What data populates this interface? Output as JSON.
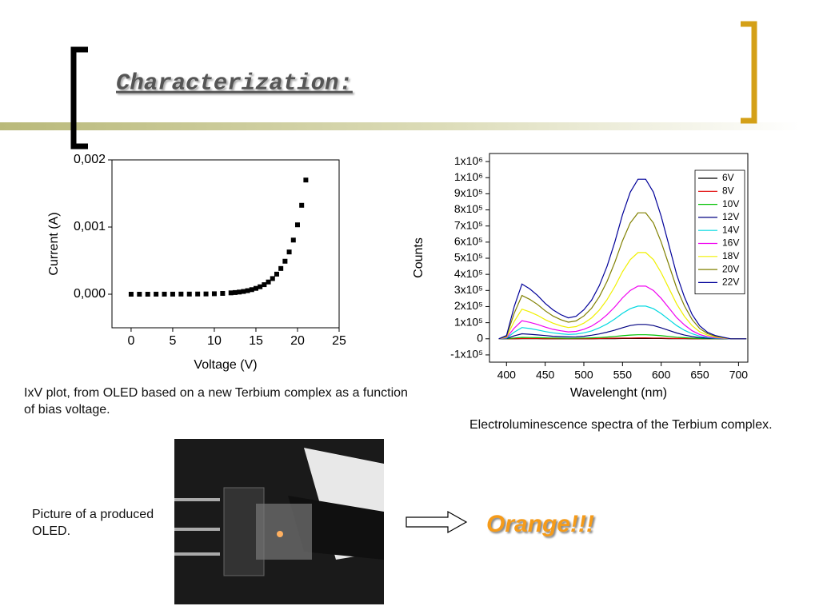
{
  "title": "Characterization:",
  "chart_data": [
    {
      "type": "scatter",
      "xlabel": "Voltage (V)",
      "ylabel": "Current (A)",
      "color": "#000000",
      "x": [
        0,
        1,
        2,
        3,
        4,
        5,
        6,
        7,
        8,
        9,
        10,
        11,
        12,
        12.5,
        13,
        13.5,
        14,
        14.5,
        15,
        15.5,
        16,
        16.5,
        17,
        17.5,
        18,
        18.5,
        19,
        19.5,
        20,
        20.5,
        21
      ],
      "values": [
        0,
        0,
        0,
        1e-06,
        1e-06,
        1e-06,
        2e-06,
        2e-06,
        3e-06,
        4e-06,
        7e-06,
        1.2e-05,
        2e-05,
        2.5e-05,
        3.2e-05,
        4.1e-05,
        5.3e-05,
        6.8e-05,
        8.7e-05,
        0.000111,
        0.000142,
        0.000182,
        0.000233,
        0.000299,
        0.000383,
        0.000491,
        0.000629,
        0.000806,
        0.001033,
        0.001324,
        0.0017
      ],
      "xlim": [
        -2.3,
        25
      ],
      "xticks": [
        0,
        5,
        10,
        15,
        20,
        25
      ],
      "ylim": [
        -0.0005,
        0.002
      ],
      "yticks": [
        {
          "value": 0,
          "label": "0,000"
        },
        {
          "value": 0.001,
          "label": "0,001"
        },
        {
          "value": 0.002,
          "label": "0,002"
        }
      ]
    },
    {
      "type": "line",
      "xlabel": "Wavelenght (nm)",
      "ylabel": "Counts",
      "legend": "upper right",
      "x": [
        390,
        400,
        410,
        420,
        430,
        440,
        450,
        460,
        470,
        480,
        490,
        500,
        510,
        520,
        530,
        540,
        550,
        560,
        570,
        580,
        590,
        600,
        610,
        620,
        630,
        640,
        650,
        660,
        670,
        680,
        690,
        700,
        710
      ],
      "series": [
        {
          "name": "6V",
          "color": "#000000",
          "values": [
            0,
            0,
            0,
            1000,
            1000,
            1000,
            0,
            0,
            0,
            0,
            0,
            0,
            0,
            1000,
            1000,
            1000,
            2000,
            2000,
            2000,
            2000,
            2000,
            2000,
            1000,
            1000,
            1000,
            0,
            0,
            0,
            0,
            0,
            0,
            0,
            0
          ]
        },
        {
          "name": "8V",
          "color": "#e00000",
          "values": [
            0,
            0,
            1000,
            2000,
            2000,
            2000,
            1000,
            1000,
            1000,
            1000,
            1000,
            1000,
            1000,
            2000,
            3000,
            4000,
            5000,
            5000,
            6000,
            6000,
            5000,
            5000,
            3000,
            2000,
            2000,
            1000,
            0,
            0,
            0,
            0,
            0,
            0,
            0
          ]
        },
        {
          "name": "10V",
          "color": "#00c000",
          "values": [
            0,
            1000,
            5000,
            9000,
            8000,
            7000,
            6000,
            5000,
            4000,
            3000,
            4000,
            5000,
            6000,
            8000,
            11000,
            15000,
            19000,
            23000,
            25000,
            25000,
            23000,
            19000,
            15000,
            10000,
            7000,
            4000,
            2000,
            1000,
            1000,
            0,
            0,
            0,
            0
          ]
        },
        {
          "name": "12V",
          "color": "#000080",
          "values": [
            0,
            2000,
            18000,
            31000,
            28000,
            24000,
            20000,
            16000,
            14000,
            12000,
            13000,
            16000,
            22000,
            30000,
            41000,
            54000,
            69000,
            82000,
            89000,
            89000,
            82000,
            68000,
            52000,
            36000,
            23000,
            14000,
            7000,
            4000,
            2000,
            1000,
            0,
            0,
            0
          ]
        },
        {
          "name": "14V",
          "color": "#00d8e0",
          "values": [
            0,
            4000,
            41000,
            70000,
            64000,
            55000,
            45000,
            37000,
            31000,
            27000,
            29000,
            37000,
            49000,
            68000,
            92000,
            123000,
            158000,
            187000,
            203000,
            203000,
            187000,
            156000,
            119000,
            82000,
            53000,
            31000,
            16000,
            8000,
            4000,
            2000,
            0,
            0,
            0
          ]
        },
        {
          "name": "16V",
          "color": "#f000f0",
          "values": [
            0,
            7000,
            66000,
            112000,
            102000,
            89000,
            73000,
            59000,
            50000,
            43000,
            46000,
            59000,
            79000,
            109000,
            149000,
            198000,
            254000,
            300000,
            327000,
            327000,
            300000,
            251000,
            191000,
            132000,
            86000,
            50000,
            26000,
            13000,
            7000,
            3000,
            0,
            0,
            0
          ]
        },
        {
          "name": "18V",
          "color": "#f0f000",
          "values": [
            0,
            11000,
            108000,
            184000,
            167000,
            146000,
            119000,
            97000,
            81000,
            70000,
            76000,
            97000,
            130000,
            178000,
            243000,
            324000,
            416000,
            491000,
            535000,
            535000,
            491000,
            410000,
            313000,
            216000,
            140000,
            81000,
            43000,
            22000,
            11000,
            5000,
            0,
            0,
            0
          ]
        },
        {
          "name": "20V",
          "color": "#808000",
          "values": [
            0,
            16000,
            158000,
            269000,
            245000,
            213000,
            174000,
            142000,
            119000,
            103000,
            111000,
            142000,
            190000,
            261000,
            356000,
            474000,
            608000,
            719000,
            782000,
            782000,
            719000,
            600000,
            458000,
            316000,
            205000,
            119000,
            63000,
            32000,
            16000,
            8000,
            0,
            0,
            0
          ]
        },
        {
          "name": "22V",
          "color": "#000099",
          "values": [
            0,
            20000,
            200000,
            340000,
            310000,
            270000,
            220000,
            180000,
            150000,
            130000,
            140000,
            180000,
            240000,
            330000,
            450000,
            600000,
            770000,
            910000,
            990000,
            990000,
            910000,
            760000,
            580000,
            400000,
            260000,
            150000,
            80000,
            40000,
            20000,
            10000,
            0,
            0,
            0
          ]
        }
      ],
      "xlim": [
        378,
        712
      ],
      "xticks": [
        400,
        450,
        500,
        550,
        600,
        650,
        700
      ],
      "ylim": [
        -145000,
        1150000
      ],
      "yticks": [
        {
          "value": -100000,
          "label": "-1x10⁵"
        },
        0,
        {
          "value": 100000,
          "label": "1x10⁵"
        },
        {
          "value": 200000,
          "label": "2x10⁵"
        },
        {
          "value": 300000,
          "label": "3x10⁵"
        },
        {
          "value": 400000,
          "label": "4x10⁵"
        },
        {
          "value": 500000,
          "label": "5x10⁵"
        },
        {
          "value": 600000,
          "label": "6x10⁵"
        },
        {
          "value": 700000,
          "label": "7x10⁵"
        },
        {
          "value": 800000,
          "label": "8x10⁵"
        },
        {
          "value": 900000,
          "label": "9x10⁵"
        },
        {
          "value": 1000000,
          "label": "1x10⁶"
        },
        {
          "value": 1100000,
          "label": "1x10⁶"
        }
      ]
    }
  ],
  "captions": {
    "iv": "IxV plot, from OLED based on a new Terbium complex as a function of bias voltage.",
    "spectra": "Electroluminescence spectra of the Terbium complex.",
    "photo": "Picture of a produced OLED."
  },
  "emphasis": "Orange!!!"
}
